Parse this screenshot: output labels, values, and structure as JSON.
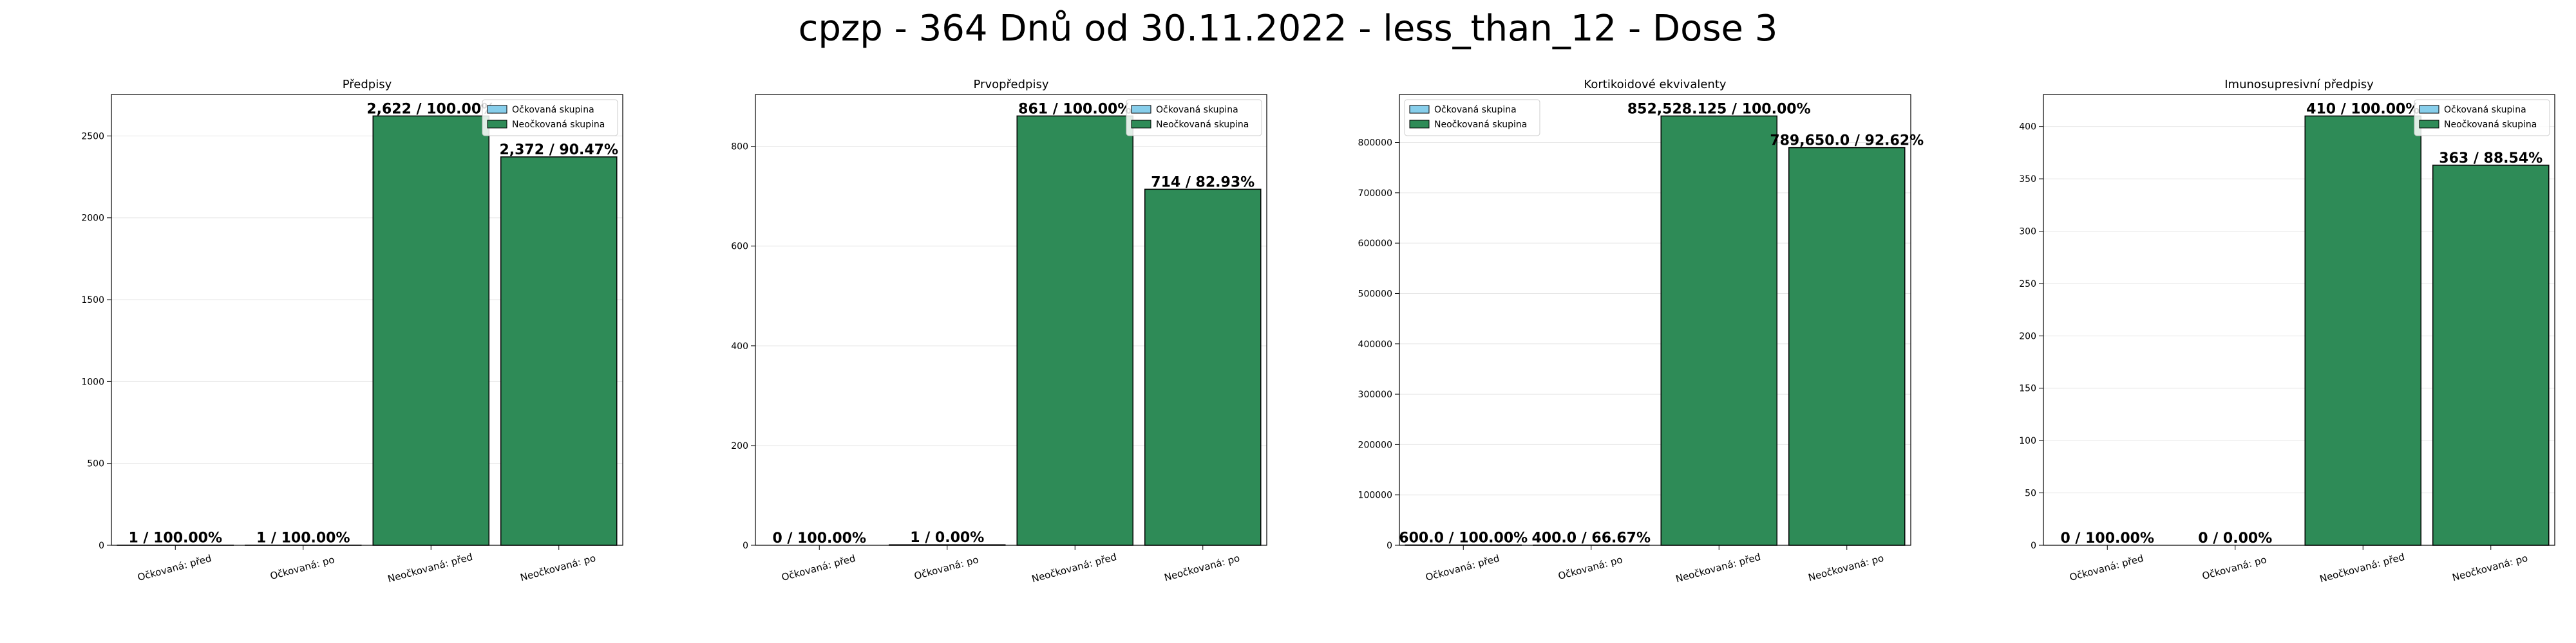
{
  "figure": {
    "suptitle": "cpzp - 364 Dnů od 30.11.2022 - less_than_12 - Dose 3"
  },
  "colors": {
    "vaccinated": "#87ceeb",
    "unvaccinated": "#2e8b57",
    "edge": "#000000",
    "grid": "#e6e6e6"
  },
  "chart_data": [
    {
      "type": "bar",
      "title": "Předpisy",
      "categories": [
        "Očkovaná: před",
        "Očkovaná: po",
        "Neočkovaná: před",
        "Neočkovaná: po"
      ],
      "values": [
        1,
        1,
        2622,
        2372
      ],
      "groups": [
        "vaccinated",
        "vaccinated",
        "unvaccinated",
        "unvaccinated"
      ],
      "data_labels": [
        "1 / 100.00%",
        "1 / 100.00%",
        "2,622 / 100.00%",
        "2,372 / 90.47%"
      ],
      "yticks": [
        0,
        500,
        1000,
        1500,
        2000,
        2500
      ],
      "ytick_labels": [
        "0",
        "500",
        "1000",
        "1500",
        "2000",
        "2500"
      ],
      "ylim": [
        0,
        2753
      ],
      "legend": [
        "Očkovaná skupina",
        "Neočkovaná skupina"
      ],
      "legend_position": "top-right",
      "grid": true
    },
    {
      "type": "bar",
      "title": "Prvopředpisy",
      "categories": [
        "Očkovaná: před",
        "Očkovaná: po",
        "Neočkovaná: před",
        "Neočkovaná: po"
      ],
      "values": [
        0,
        1,
        861,
        714
      ],
      "groups": [
        "vaccinated",
        "vaccinated",
        "unvaccinated",
        "unvaccinated"
      ],
      "data_labels": [
        "0 / 100.00%",
        "1 / 0.00%",
        "861 / 100.00%",
        "714 / 82.93%"
      ],
      "yticks": [
        0,
        200,
        400,
        600,
        800
      ],
      "ytick_labels": [
        "0",
        "200",
        "400",
        "600",
        "800"
      ],
      "ylim": [
        0,
        904
      ],
      "legend": [
        "Očkovaná skupina",
        "Neočkovaná skupina"
      ],
      "legend_position": "top-right",
      "grid": true
    },
    {
      "type": "bar",
      "title": "Kortikoidové ekvivalenty",
      "categories": [
        "Očkovaná: před",
        "Očkovaná: po",
        "Neočkovaná: před",
        "Neočkovaná: po"
      ],
      "values": [
        600,
        400,
        852528.125,
        789650
      ],
      "groups": [
        "vaccinated",
        "vaccinated",
        "unvaccinated",
        "unvaccinated"
      ],
      "data_labels": [
        "600.0 / 100.00%",
        "400.0 / 66.67%",
        "852,528.125 / 100.00%",
        "789,650.0 / 92.62%"
      ],
      "yticks": [
        0,
        100000,
        200000,
        300000,
        400000,
        500000,
        600000,
        700000,
        800000
      ],
      "ytick_labels": [
        "0",
        "100000",
        "200000",
        "300000",
        "400000",
        "500000",
        "600000",
        "700000",
        "800000"
      ],
      "ylim": [
        0,
        895154
      ],
      "legend": [
        "Očkovaná skupina",
        "Neočkovaná skupina"
      ],
      "legend_position": "top-left",
      "grid": true
    },
    {
      "type": "bar",
      "title": "Imunosupresivní předpisy",
      "categories": [
        "Očkovaná: před",
        "Očkovaná: po",
        "Neočkovaná: před",
        "Neočkovaná: po"
      ],
      "values": [
        0,
        0,
        410,
        363
      ],
      "groups": [
        "vaccinated",
        "vaccinated",
        "unvaccinated",
        "unvaccinated"
      ],
      "data_labels": [
        "0 / 100.00%",
        "0 / 0.00%",
        "410 / 100.00%",
        "363 / 88.54%"
      ],
      "yticks": [
        0,
        50,
        100,
        150,
        200,
        250,
        300,
        350,
        400
      ],
      "ytick_labels": [
        "0",
        "50",
        "100",
        "150",
        "200",
        "250",
        "300",
        "350",
        "400"
      ],
      "ylim": [
        0,
        430.5
      ],
      "legend": [
        "Očkovaná skupina",
        "Neočkovaná skupina"
      ],
      "legend_position": "top-right",
      "grid": true
    }
  ]
}
